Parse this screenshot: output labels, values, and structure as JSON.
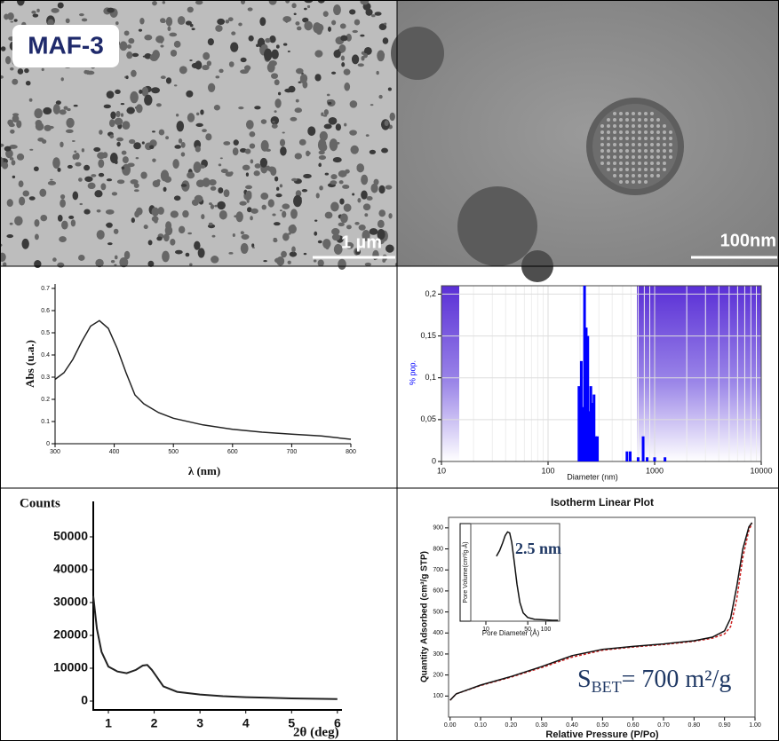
{
  "panels": {
    "tem_low": {
      "label": "MAF-3",
      "scale_bar": "1 µm"
    },
    "tem_high": {
      "scale_bar": "100nm"
    }
  },
  "chart_data": [
    {
      "type": "line",
      "xlabel": "λ (nm)",
      "ylabel": "Abs (u.a.)",
      "x": [
        300,
        315,
        330,
        345,
        360,
        375,
        390,
        405,
        420,
        435,
        450,
        475,
        500,
        550,
        600,
        650,
        700,
        750,
        800
      ],
      "series": [
        {
          "color": "#222222",
          "values": [
            0.29,
            0.32,
            0.38,
            0.46,
            0.53,
            0.555,
            0.52,
            0.43,
            0.32,
            0.22,
            0.18,
            0.14,
            0.115,
            0.085,
            0.065,
            0.052,
            0.043,
            0.035,
            0.02
          ]
        }
      ],
      "xlim": [
        300,
        800
      ],
      "xticks": [
        300,
        400,
        500,
        600,
        700,
        800
      ],
      "ylim": [
        0,
        0.72
      ],
      "yticks": [
        0,
        0.1,
        0.2,
        0.3,
        0.4,
        0.5,
        0.6,
        0.7
      ]
    },
    {
      "type": "bar",
      "xlabel": "Diameter (nm)",
      "ylabel": "% pop.",
      "color": "#0000ff",
      "xlog": true,
      "grid": true,
      "x": [
        195,
        205,
        212,
        220,
        228,
        236,
        244,
        252,
        260,
        270,
        280,
        290,
        550,
        590,
        700,
        780,
        850,
        1000,
        1250
      ],
      "values": [
        0.09,
        0.12,
        0.065,
        0.21,
        0.16,
        0.15,
        0.06,
        0.09,
        0.07,
        0.08,
        0.03,
        0.03,
        0.012,
        0.012,
        0.005,
        0.03,
        0.005,
        0.005,
        0.005
      ],
      "xlim": [
        10,
        10000
      ],
      "xticks": [
        10,
        100,
        1000,
        10000
      ],
      "ylim": [
        0,
        0.21
      ],
      "yticks": [
        0,
        {
          "value": 0.05,
          "label": "0,05"
        },
        {
          "value": 0.1,
          "label": "0,1"
        },
        {
          "value": 0.15,
          "label": "0,15"
        },
        {
          "value": 0.2,
          "label": "0,2"
        }
      ]
    },
    {
      "type": "line",
      "title": "Counts",
      "xlabel": "2θ (deg)",
      "x": [
        0.67,
        0.75,
        0.85,
        1.0,
        1.2,
        1.4,
        1.6,
        1.75,
        1.85,
        1.95,
        2.05,
        2.2,
        2.5,
        3.0,
        3.5,
        4.0,
        4.5,
        5.0,
        5.5,
        6.0
      ],
      "series": [
        {
          "color": "#222222",
          "values": [
            32000,
            22000,
            15000,
            10500,
            9000,
            8500,
            9500,
            10800,
            11000,
            9500,
            7500,
            4500,
            2800,
            2000,
            1500,
            1200,
            1000,
            800,
            700,
            600
          ]
        }
      ],
      "xlim": [
        0.67,
        6.1
      ],
      "xticks": [
        1,
        2,
        3,
        4,
        5,
        6
      ],
      "ylim": [
        -2700,
        60800
      ],
      "yticks": [
        0,
        10000,
        20000,
        30000,
        40000,
        50000
      ]
    },
    {
      "type": "line",
      "title": "Isotherm Linear Plot",
      "xlabel": "Relative Pressure (P/Po)",
      "ylabel": "Quantity Adsorbed (cm³/g STP)",
      "annotation_main": "S",
      "annotation_subscript": "BET",
      "annotation_rest": "= 700 m²/g",
      "x": [
        0.0,
        0.02,
        0.05,
        0.1,
        0.2,
        0.3,
        0.4,
        0.5,
        0.6,
        0.7,
        0.8,
        0.86,
        0.9,
        0.92,
        0.94,
        0.96,
        0.98,
        0.99
      ],
      "series": [
        {
          "color": "#cc2222",
          "values": [
            80,
            110,
            125,
            150,
            190,
            235,
            285,
            318,
            333,
            345,
            360,
            375,
            395,
            430,
            560,
            760,
            890,
            920
          ]
        },
        {
          "color": "#111111",
          "values": [
            80,
            110,
            126,
            152,
            193,
            240,
            292,
            322,
            336,
            348,
            363,
            380,
            410,
            470,
            620,
            800,
            905,
            925
          ]
        }
      ],
      "xlim": [
        -0.005,
        1.0
      ],
      "xticks": [
        {
          "value": 0,
          "label": "0.00"
        },
        {
          "value": 0.1,
          "label": "0.10"
        },
        {
          "value": 0.2,
          "label": "0.20"
        },
        {
          "value": 0.3,
          "label": "0.30"
        },
        {
          "value": 0.4,
          "label": "0.40"
        },
        {
          "value": 0.5,
          "label": "0.50"
        },
        {
          "value": 0.6,
          "label": "0.60"
        },
        {
          "value": 0.7,
          "label": "0.70"
        },
        {
          "value": 0.8,
          "label": "0.80"
        },
        {
          "value": 0.9,
          "label": "0.90"
        },
        {
          "value": 1,
          "label": "1.00"
        }
      ],
      "ylim": [
        0,
        950
      ],
      "yticks": [
        100,
        200,
        300,
        400,
        500,
        600,
        700,
        800,
        900
      ]
    },
    {
      "type": "line",
      "annotation": "2.5 nm",
      "xlabel": "Pore Diameter (Å)",
      "ylabel": "Pore Volume(cm³/g·Å)",
      "xlog": true,
      "x": [
        15,
        17,
        19,
        21,
        23,
        25,
        27,
        30,
        33,
        37,
        42,
        50,
        65,
        90,
        130,
        160
      ],
      "series": [
        {
          "color": "#111111",
          "values": [
            0.7,
            0.76,
            0.84,
            0.92,
            0.96,
            0.95,
            0.85,
            0.62,
            0.4,
            0.2,
            0.09,
            0.04,
            0.02,
            0.015,
            0.01,
            0.01
          ]
        }
      ],
      "xlim": [
        5.6,
        170
      ],
      "xticks": [
        10,
        50,
        100
      ],
      "ylim": [
        0,
        1.05
      ]
    }
  ]
}
